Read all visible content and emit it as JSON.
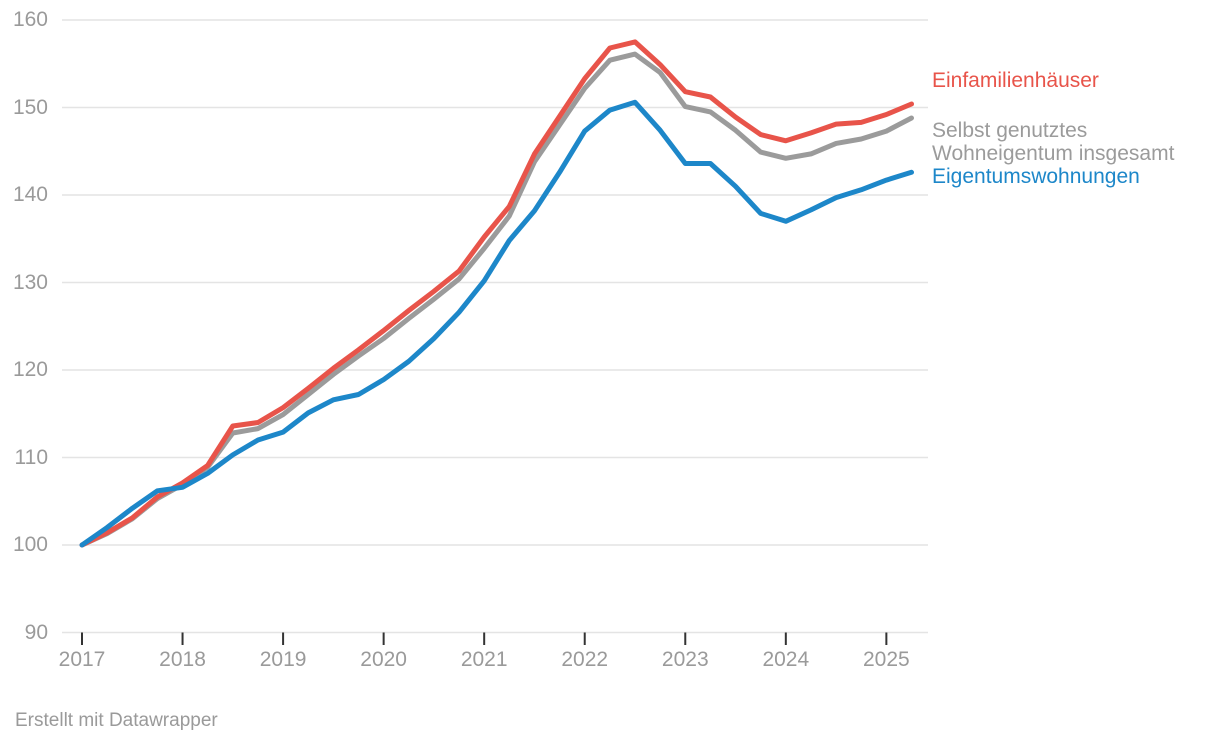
{
  "chart_data": {
    "type": "line",
    "title": "",
    "xlabel": "",
    "ylabel": "",
    "ylim": [
      90,
      160
    ],
    "y_axis_ticks": [
      160,
      150,
      140,
      130,
      120,
      110,
      100,
      90
    ],
    "x_axis_ticks": [
      "2017",
      "2018",
      "2019",
      "2020",
      "2021",
      "2022",
      "2023",
      "2024",
      "2025"
    ],
    "grid": "horizontal",
    "legend_position": "right",
    "x_labels": [
      "2017 Q1",
      "2017 Q2",
      "2017 Q3",
      "2017 Q4",
      "2018 Q1",
      "2018 Q2",
      "2018 Q3",
      "2018 Q4",
      "2019 Q1",
      "2019 Q2",
      "2019 Q3",
      "2019 Q4",
      "2020 Q1",
      "2020 Q2",
      "2020 Q3",
      "2020 Q4",
      "2021 Q1",
      "2021 Q2",
      "2021 Q3",
      "2021 Q4",
      "2022 Q1",
      "2022 Q2",
      "2022 Q3",
      "2022 Q4",
      "2023 Q1",
      "2023 Q2",
      "2023 Q3",
      "2023 Q4",
      "2024 Q1",
      "2024 Q2",
      "2024 Q3",
      "2024 Q4",
      "2025 Q1",
      "2025 Q2"
    ],
    "series": [
      {
        "name": "Einfamilienhäuser",
        "color": "#e8544a",
        "values": [
          100,
          101.4,
          103.1,
          105.5,
          107.1,
          109.1,
          113.6,
          114.0,
          115.7,
          117.9,
          120.2,
          122.3,
          124.5,
          126.8,
          129.0,
          131.3,
          135.2,
          138.7,
          144.7,
          149.0,
          153.3,
          156.8,
          157.5,
          154.9,
          151.8,
          151.2,
          148.9,
          146.9,
          146.2,
          147.1,
          148.1,
          148.3,
          149.2,
          150.4
        ]
      },
      {
        "name": "Selbst genutztes Wohneigentum insgesamt",
        "color": "#9b9b9b",
        "values": [
          100,
          101.3,
          103.0,
          105.3,
          106.9,
          108.9,
          112.8,
          113.3,
          114.9,
          117.2,
          119.5,
          121.6,
          123.6,
          125.9,
          128.1,
          130.4,
          133.9,
          137.6,
          143.8,
          148.0,
          152.2,
          155.4,
          156.1,
          154.0,
          150.1,
          149.5,
          147.4,
          144.9,
          144.2,
          144.7,
          145.9,
          146.4,
          147.3,
          148.8
        ]
      },
      {
        "name": "Eigentumswohnungen",
        "color": "#1d87c9",
        "values": [
          100,
          102.0,
          104.2,
          106.2,
          106.6,
          108.2,
          110.3,
          112.0,
          112.9,
          115.1,
          116.6,
          117.2,
          118.9,
          121.0,
          123.6,
          126.6,
          130.2,
          134.8,
          138.2,
          142.6,
          147.3,
          149.7,
          150.6,
          147.4,
          143.6,
          143.6,
          141.0,
          137.9,
          137.0,
          138.3,
          139.7,
          140.6,
          141.7,
          142.6
        ]
      }
    ]
  },
  "colors": {
    "background": "#ffffff",
    "gridline": "#e4e4e4",
    "axis_tick": "#333333",
    "axis_text": "#9a9a9a"
  },
  "footer": {
    "credit": "Erstellt mit Datawrapper"
  }
}
